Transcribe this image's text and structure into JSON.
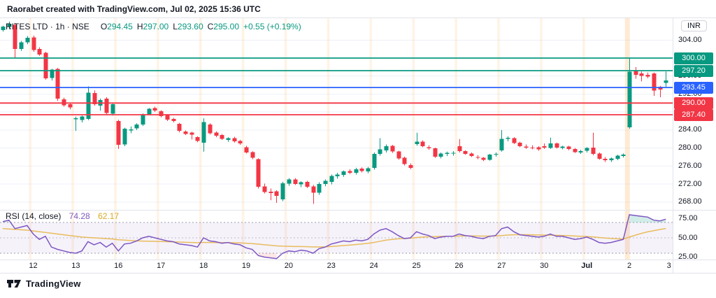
{
  "header": {
    "attribution": "Raorabet created with TradingView.com, Jul 02, 2025 15:36 UTC",
    "symbol_line": "RITES LTD · 1h · NSE",
    "ohlc": [
      {
        "k": "O",
        "v": "294.45"
      },
      {
        "k": "H",
        "v": "297.00"
      },
      {
        "k": "L",
        "v": "293.60"
      },
      {
        "k": "C",
        "v": "295.00"
      }
    ],
    "change": "+0.55 (+0.19%)"
  },
  "price_axis": {
    "currency": "INR",
    "ticks": [
      {
        "label": "304.00",
        "price": 304
      },
      {
        "label": "300.00",
        "price": 300
      },
      {
        "label": "296.00",
        "price": 296
      },
      {
        "label": "292.00",
        "price": 292
      },
      {
        "label": "288.00",
        "price": 288
      },
      {
        "label": "284.00",
        "price": 284
      },
      {
        "label": "280.00",
        "price": 280
      },
      {
        "label": "276.00",
        "price": 276
      },
      {
        "label": "272.00",
        "price": 272
      },
      {
        "label": "268.00",
        "price": 268
      }
    ],
    "badges": [
      {
        "label": "300.00",
        "price": 300,
        "color": "#089981"
      },
      {
        "label": "297.20",
        "price": 297.2,
        "color": "#089981"
      },
      {
        "label": "293.45",
        "price": 293.45,
        "color": "#2962ff"
      },
      {
        "label": "290.00",
        "price": 290,
        "color": "#f23645"
      },
      {
        "label": "287.40",
        "price": 287.4,
        "color": "#f23645"
      }
    ]
  },
  "time_axis": {
    "labels": [
      {
        "text": "12",
        "bar": 5
      },
      {
        "text": "13",
        "bar": 12
      },
      {
        "text": "16",
        "bar": 19
      },
      {
        "text": "17",
        "bar": 26
      },
      {
        "text": "18",
        "bar": 33
      },
      {
        "text": "19",
        "bar": 40
      },
      {
        "text": "20",
        "bar": 47
      },
      {
        "text": "23",
        "bar": 54
      },
      {
        "text": "24",
        "bar": 61
      },
      {
        "text": "25",
        "bar": 68
      },
      {
        "text": "26",
        "bar": 75
      },
      {
        "text": "27",
        "bar": 82
      },
      {
        "text": "30",
        "bar": 89
      },
      {
        "text": "Jul",
        "bar": 96,
        "bold": true
      },
      {
        "text": "2",
        "bar": 103
      },
      {
        "text": "3",
        "bar": 109.5
      }
    ]
  },
  "rsi_pane": {
    "title": "RSI (14, close)",
    "value": "74.28",
    "ma_value": "62.17",
    "ticks": [
      {
        "label": "75.00",
        "value": 75
      },
      {
        "label": "50.00",
        "value": 50
      },
      {
        "label": "25.00",
        "value": 25
      }
    ]
  },
  "footer": {
    "brand": "TradingView"
  },
  "colors": {
    "up": "#089981",
    "down": "#f23645",
    "blue": "#2962ff",
    "rsi": "#7e57c2",
    "rsi_ma": "#e8b64c",
    "text": "#131722",
    "grid": "#eef1f8",
    "border": "#e0e3eb",
    "stripe": "rgba(255,160,60,0.13)",
    "stripe_last": "rgba(255,160,60,0.22)",
    "band": "rgba(126,87,194,0.08)",
    "ob_fill": "rgba(8,153,129,0.18)",
    "os_fill": "rgba(242,54,69,0.12)"
  },
  "chart_data": {
    "type": "candlestick",
    "title": "RITES LTD · 1h · NSE",
    "last_bar": {
      "open": 294.45,
      "high": 297.0,
      "low": 293.6,
      "close": 295.0,
      "change": 0.55,
      "change_pct": 0.19
    },
    "price_axis_range": [
      266,
      309
    ],
    "levels": [
      {
        "price": 300.0,
        "color": "#089981"
      },
      {
        "price": 297.2,
        "color": "#089981"
      },
      {
        "price": 293.45,
        "color": "#2962ff"
      },
      {
        "price": 290.0,
        "color": "#f23645"
      },
      {
        "price": 287.4,
        "color": "#f23645"
      }
    ],
    "day_start_bars": [
      5,
      12,
      19,
      26,
      33,
      40,
      47,
      54,
      61,
      68,
      75,
      82,
      89,
      96,
      103
    ],
    "candles": [
      [
        306.2,
        307.2,
        305.9,
        307.0
      ],
      [
        306.9,
        308.1,
        306.4,
        307.6
      ],
      [
        307.4,
        307.8,
        300.0,
        302.0
      ],
      [
        302.0,
        303.8,
        301.6,
        303.5
      ],
      [
        303.5,
        304.9,
        303.1,
        304.5
      ],
      [
        304.6,
        305.0,
        301.4,
        301.8
      ],
      [
        302.0,
        302.4,
        300.5,
        300.8
      ],
      [
        301.2,
        301.4,
        295.2,
        295.5
      ],
      [
        295.6,
        297.6,
        295.0,
        297.4
      ],
      [
        297.6,
        297.8,
        290.5,
        291.0
      ],
      [
        290.8,
        291.2,
        289.2,
        289.5
      ],
      [
        289.7,
        290.0,
        288.6,
        289.0
      ],
      [
        286.4,
        287.0,
        283.8,
        286.6
      ],
      [
        286.2,
        287.2,
        285.7,
        287.0
      ],
      [
        286.5,
        293.7,
        286.2,
        292.3
      ],
      [
        292.2,
        292.8,
        289.4,
        289.7
      ],
      [
        289.4,
        291.0,
        288.3,
        290.7
      ],
      [
        291.0,
        291.3,
        287.5,
        287.8
      ],
      [
        287.6,
        290.0,
        287.2,
        289.7
      ],
      [
        286.0,
        286.3,
        279.8,
        280.7
      ],
      [
        280.8,
        284.5,
        280.4,
        284.3
      ],
      [
        283.9,
        284.8,
        283.3,
        284.1
      ],
      [
        284.4,
        285.5,
        284.0,
        285.2
      ],
      [
        285.2,
        287.7,
        284.9,
        287.5
      ],
      [
        287.5,
        288.9,
        287.3,
        288.7
      ],
      [
        288.9,
        289.2,
        288.0,
        288.3
      ],
      [
        288.2,
        288.4,
        286.8,
        287.1
      ],
      [
        287.3,
        287.5,
        286.0,
        286.3
      ],
      [
        286.5,
        286.7,
        285.7,
        286.0
      ],
      [
        285.4,
        285.6,
        283.5,
        283.8
      ],
      [
        283.7,
        283.9,
        282.9,
        283.1
      ],
      [
        283.4,
        283.6,
        281.9,
        283.0
      ],
      [
        282.4,
        282.6,
        281.3,
        281.6
      ],
      [
        281.2,
        286.6,
        279.2,
        285.8
      ],
      [
        285.2,
        285.5,
        283.0,
        283.3
      ],
      [
        283.4,
        283.7,
        282.4,
        282.7
      ],
      [
        282.9,
        283.1,
        281.8,
        282.0
      ],
      [
        281.8,
        282.4,
        281.4,
        282.2
      ],
      [
        282.2,
        282.5,
        281.2,
        281.5
      ],
      [
        281.6,
        281.8,
        280.7,
        281.0
      ],
      [
        280.2,
        280.5,
        278.8,
        279.0
      ],
      [
        279.1,
        279.3,
        277.5,
        277.8
      ],
      [
        277.5,
        277.7,
        271.0,
        271.4
      ],
      [
        271.5,
        272.1,
        269.9,
        270.2
      ],
      [
        270.3,
        271.0,
        268.4,
        270.0
      ],
      [
        270.4,
        270.6,
        267.8,
        269.4
      ],
      [
        268.6,
        272.5,
        268.2,
        272.2
      ],
      [
        272.1,
        273.3,
        271.6,
        273.0
      ],
      [
        273.0,
        273.3,
        271.8,
        272.0
      ],
      [
        271.9,
        272.6,
        271.3,
        272.4
      ],
      [
        272.5,
        272.7,
        271.1,
        271.4
      ],
      [
        271.5,
        271.8,
        267.6,
        270.1
      ],
      [
        270.1,
        272.4,
        269.6,
        272.0
      ],
      [
        272.0,
        273.0,
        271.5,
        272.7
      ],
      [
        272.5,
        274.1,
        271.9,
        273.8
      ],
      [
        273.7,
        274.5,
        273.2,
        274.1
      ],
      [
        274.0,
        275.0,
        273.6,
        274.8
      ],
      [
        274.9,
        275.3,
        274.2,
        274.5
      ],
      [
        274.5,
        275.6,
        274.1,
        275.3
      ],
      [
        275.4,
        275.7,
        274.6,
        274.9
      ],
      [
        274.8,
        275.8,
        274.4,
        275.5
      ],
      [
        275.6,
        279.0,
        275.2,
        278.7
      ],
      [
        278.7,
        282.2,
        278.3,
        279.7
      ],
      [
        279.5,
        280.8,
        279.0,
        280.4
      ],
      [
        280.5,
        280.7,
        278.9,
        279.2
      ],
      [
        279.2,
        279.4,
        277.4,
        277.7
      ],
      [
        277.8,
        278.1,
        276.1,
        276.4
      ],
      [
        276.2,
        276.6,
        275.3,
        275.6
      ],
      [
        280.9,
        283.4,
        280.5,
        281.4
      ],
      [
        281.4,
        281.7,
        280.2,
        280.4
      ],
      [
        280.2,
        280.6,
        279.6,
        279.9
      ],
      [
        279.9,
        280.1,
        277.8,
        278.1
      ],
      [
        278.1,
        279.0,
        277.7,
        278.8
      ],
      [
        278.7,
        279.2,
        278.2,
        278.9
      ],
      [
        278.8,
        279.3,
        278.3,
        278.9
      ],
      [
        280.4,
        282.0,
        279.0,
        279.3
      ],
      [
        279.3,
        279.5,
        278.5,
        278.7
      ],
      [
        278.8,
        279.0,
        278.0,
        278.2
      ],
      [
        278.0,
        278.4,
        277.5,
        277.8
      ],
      [
        277.8,
        278.0,
        277.1,
        277.4
      ],
      [
        277.4,
        278.7,
        277.2,
        278.5
      ],
      [
        278.5,
        279.0,
        278.1,
        278.7
      ],
      [
        279.5,
        284.0,
        279.2,
        282.0
      ],
      [
        282.0,
        282.6,
        281.5,
        282.3
      ],
      [
        282.2,
        282.4,
        280.9,
        281.1
      ],
      [
        281.2,
        281.4,
        280.2,
        280.4
      ],
      [
        280.3,
        280.8,
        279.8,
        280.1
      ],
      [
        280.1,
        280.6,
        279.7,
        280.0
      ],
      [
        280.2,
        280.4,
        279.4,
        279.7
      ],
      [
        280.4,
        281.0,
        279.8,
        280.1
      ],
      [
        280.0,
        282.3,
        279.8,
        281.0
      ],
      [
        281.0,
        281.2,
        279.9,
        280.1
      ],
      [
        280.0,
        280.5,
        279.7,
        280.3
      ],
      [
        280.3,
        280.5,
        279.5,
        279.8
      ],
      [
        279.8,
        280.0,
        278.9,
        279.1
      ],
      [
        279.0,
        279.6,
        278.7,
        279.3
      ],
      [
        279.4,
        280.2,
        279.0,
        280.0
      ],
      [
        280.1,
        283.4,
        278.4,
        278.7
      ],
      [
        278.8,
        279.0,
        277.4,
        277.6
      ],
      [
        277.6,
        278.0,
        276.9,
        277.3
      ],
      [
        277.3,
        277.9,
        276.9,
        277.7
      ],
      [
        277.6,
        278.5,
        277.3,
        278.3
      ],
      [
        278.2,
        278.8,
        277.9,
        278.5
      ],
      [
        284.6,
        300.1,
        284.3,
        297.0
      ],
      [
        297.3,
        298.0,
        295.4,
        296.3
      ],
      [
        296.6,
        297.0,
        294.8,
        296.0
      ],
      [
        296.3,
        296.8,
        295.5,
        295.9
      ],
      [
        296.6,
        296.8,
        291.6,
        292.8
      ],
      [
        293.6,
        293.8,
        291.3,
        293.0
      ],
      [
        294.45,
        297.0,
        293.6,
        295.0
      ]
    ],
    "rsi": {
      "period": 14,
      "source": "close",
      "bands": {
        "upper": 70,
        "middle": 50,
        "lower": 30
      },
      "range": [
        25,
        75
      ],
      "values": [
        71,
        73,
        62,
        64,
        66,
        55,
        48,
        52,
        38,
        35,
        33,
        31,
        30,
        33,
        45,
        41,
        44,
        38,
        43,
        33,
        42,
        43,
        46,
        50,
        52,
        50,
        48,
        46,
        45,
        42,
        41,
        40,
        38,
        50,
        46,
        45,
        43,
        44,
        42,
        41,
        37,
        35,
        27,
        25,
        24,
        23,
        30,
        33,
        32,
        34,
        33,
        30,
        36,
        38,
        42,
        44,
        46,
        45,
        47,
        46,
        48,
        55,
        60,
        62,
        58,
        53,
        49,
        50,
        58,
        55,
        53,
        49,
        51,
        52,
        52,
        55,
        53,
        52,
        50,
        49,
        52,
        53,
        62,
        64,
        58,
        54,
        53,
        52,
        51,
        52,
        55,
        52,
        52,
        50,
        48,
        49,
        51,
        48,
        44,
        43,
        44,
        46,
        48,
        80,
        79,
        78,
        77,
        73,
        72,
        74.28
      ],
      "ma": [
        62,
        61.5,
        61,
        60.5,
        60,
        59,
        58,
        57,
        56,
        55,
        54,
        53,
        52,
        51,
        50.5,
        50,
        49.5,
        49,
        48.5,
        47.5,
        47,
        46.5,
        46,
        45.8,
        45.6,
        45.4,
        45.2,
        45,
        44.8,
        44.5,
        44.2,
        44,
        43.8,
        44,
        44,
        43.9,
        43.8,
        43.7,
        43.6,
        43.4,
        43,
        42.5,
        41.8,
        41,
        40.3,
        39.6,
        39.2,
        39,
        38.8,
        38.7,
        38.5,
        38.2,
        38.2,
        38.4,
        38.8,
        39.3,
        40,
        40.6,
        41.3,
        42,
        42.8,
        44,
        45.5,
        47,
        48,
        48.8,
        49.2,
        49.5,
        50.3,
        51,
        51.4,
        51.6,
        51.8,
        52,
        52.1,
        52.4,
        52.5,
        52.5,
        52.4,
        52.3,
        52.3,
        52.4,
        53,
        53.6,
        54,
        54.1,
        54.1,
        54,
        53.8,
        53.6,
        53.5,
        53.3,
        53.1,
        52.8,
        52.4,
        52,
        51.7,
        51.2,
        50.5,
        49.8,
        49.2,
        48.8,
        48.5,
        51,
        53.5,
        55.8,
        57.8,
        59.3,
        60.8,
        62.17
      ]
    }
  }
}
